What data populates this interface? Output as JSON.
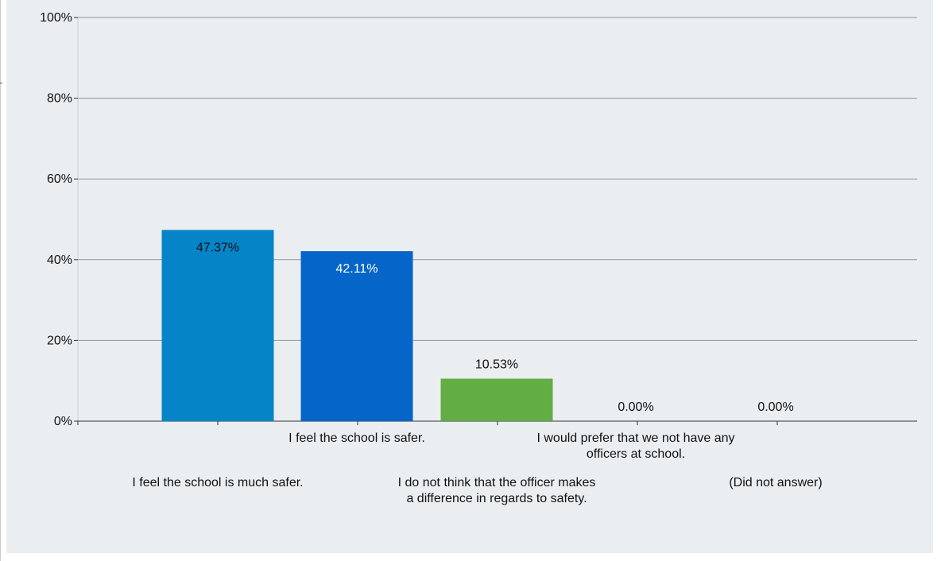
{
  "chart_data": {
    "type": "bar",
    "categories": [
      "I feel the school is much safer.",
      "I feel the school is safer.",
      "I do not think that the officer makes a difference in regards to safety.",
      "I would prefer that we not have any officers at school.",
      "(Did not answer)"
    ],
    "category_label_lines": [
      [
        "I feel the school is much safer."
      ],
      [
        "I feel the school is safer."
      ],
      [
        "I do not think that the officer makes",
        "a difference in regards to safety."
      ],
      [
        "I would prefer that we not have any",
        "officers at school."
      ],
      [
        "(Did not answer)"
      ]
    ],
    "values": [
      47.37,
      42.11,
      10.53,
      0.0,
      0.0
    ],
    "data_labels": [
      "47.37%",
      "42.11%",
      "10.53%",
      "0.00%",
      "0.00%"
    ],
    "colors": [
      "#0585c8",
      "#0565c8",
      "#62ad44",
      "#ff8c00",
      "#999999"
    ],
    "ylim": [
      0,
      100
    ],
    "yticks": [
      0,
      20,
      40,
      60,
      80,
      100
    ],
    "ytick_labels": [
      "0%",
      "20%",
      "40%",
      "60%",
      "80%",
      "100%"
    ],
    "grid": true,
    "title": "",
    "xlabel": "",
    "ylabel": ""
  }
}
